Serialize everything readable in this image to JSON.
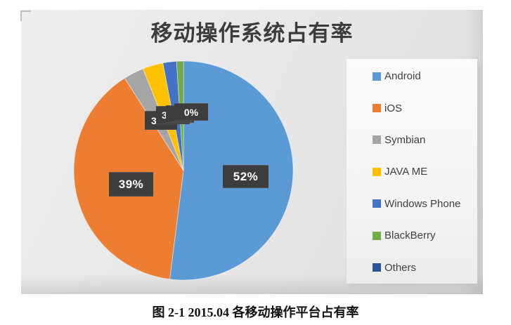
{
  "figure": {
    "title": "移动操作系统占有率",
    "caption": "图 2-1 2015.04 各移动操作平台占有率"
  },
  "chart_data": {
    "type": "pie",
    "title": "移动操作系统占有率",
    "categories": [
      "Android",
      "iOS",
      "Symbian",
      "JAVA ME",
      "Windows Phone",
      "BlackBerry",
      "Others"
    ],
    "values": [
      52,
      39,
      3,
      3,
      2,
      1,
      0
    ],
    "unit": "%",
    "colors": [
      "#5B9BD5",
      "#ED7D31",
      "#A5A5A5",
      "#FFC000",
      "#4472C4",
      "#70AD47",
      "#2F5496"
    ],
    "legend_position": "right",
    "slice_order": "clockwise-from-12-o'clock",
    "data_labels": {
      "android": "52%",
      "ios": "39%",
      "symbian": "3",
      "java_me": "3",
      "windows_phone": "2",
      "blackberry": "1",
      "others": "0%"
    },
    "data_labels_note": "small slice labels overlap into a cluster reading roughly '3 3 ÷ 0%'"
  }
}
